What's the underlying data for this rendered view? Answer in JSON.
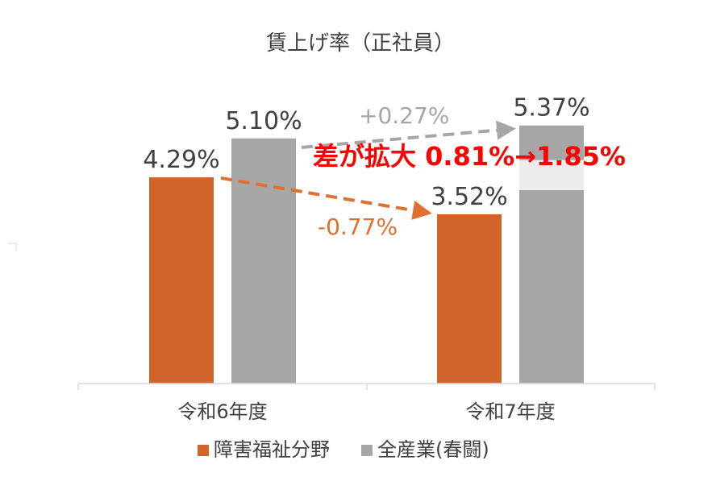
{
  "colors": {
    "series_a": "#d0642a",
    "series_b": "#a6a6a6",
    "arrow_a": "#e07030",
    "arrow_b": "#a6a6a6",
    "highlight": "#ff0000",
    "gap_band": "#ececec",
    "axis": "#d9d9d9",
    "text": "#404040"
  },
  "chart_data": {
    "type": "bar",
    "title": "賃上げ率（正社員）",
    "categories": [
      "令和6年度",
      "令和7年度"
    ],
    "series": [
      {
        "name": "障害福祉分野",
        "values": [
          4.29,
          3.52
        ],
        "labels": [
          "4.29%",
          "3.52%"
        ]
      },
      {
        "name": "全産業(春闘)",
        "values": [
          5.1,
          5.37
        ],
        "labels": [
          "5.10%",
          "5.37%"
        ]
      }
    ],
    "ylim": [
      0,
      5.8
    ],
    "grid": false,
    "legend_position": "bottom",
    "annotations": {
      "change_b": "+0.27%",
      "change_a": "-0.77%",
      "gap_text": "差が拡大 0.81%→1.85%"
    }
  }
}
